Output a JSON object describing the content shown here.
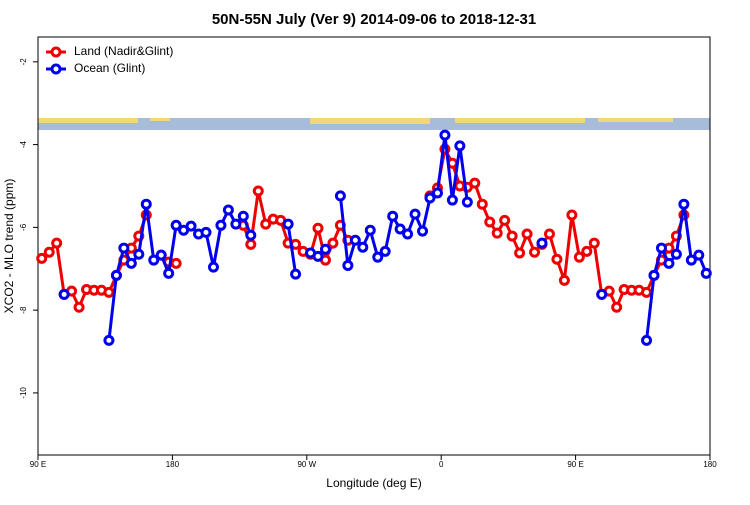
{
  "chart_data": {
    "type": "line",
    "title": "50N-55N July (Ver 9)   2014-09-06 to 2018-12-31",
    "x_label": "Longitude (deg E)",
    "y_label": "XCO2 - MLO trend (ppm)",
    "x": [
      92.5,
      97.5,
      102.5,
      107.5,
      112.5,
      117.5,
      122.5,
      127.5,
      132.5,
      137.5,
      142.5,
      147.5,
      152.5,
      157.5,
      162.5,
      167.5,
      172.5,
      177.5,
      182.5,
      187.5,
      192.5,
      197.5,
      202.5,
      207.5,
      212.5,
      217.5,
      222.5,
      227.5,
      232.5,
      237.5,
      242.5,
      247.5,
      252.5,
      257.5,
      262.5,
      267.5,
      272.5,
      277.5,
      282.5,
      287.5,
      292.5,
      297.5,
      302.5,
      307.5,
      312.5,
      317.5,
      322.5,
      327.5,
      332.5,
      337.5,
      342.5,
      347.5,
      352.5,
      357.5,
      362.5,
      367.5,
      372.5,
      377.5,
      382.5,
      387.5,
      392.5,
      397.5,
      402.5,
      407.5,
      412.5,
      417.5,
      422.5,
      427.5,
      432.5,
      437.5,
      442.5,
      447.5,
      452.5,
      457.5,
      462.5,
      467.5,
      472.5,
      477.5,
      482.5,
      487.5,
      492.5,
      497.5,
      502.5,
      507.5,
      512.5,
      517.5,
      522.5,
      527.5,
      532.5,
      537.5
    ],
    "series": [
      {
        "name": "Land (Nadir&Glint)",
        "color": "#ee0000",
        "values": [
          -6.75,
          -6.6,
          -6.38,
          -7.62,
          -7.54,
          -7.93,
          -7.5,
          -7.52,
          -7.52,
          -7.57,
          -7.16,
          -6.79,
          -6.5,
          -6.21,
          -5.7,
          null,
          -6.67,
          -6.84,
          -6.87,
          null,
          null,
          null,
          null,
          null,
          null,
          null,
          null,
          -5.95,
          -6.41,
          -5.12,
          -5.92,
          -5.8,
          -5.83,
          -6.38,
          -6.41,
          -6.58,
          -6.65,
          -6.02,
          -6.79,
          -6.38,
          -5.95,
          -6.31,
          null,
          null,
          null,
          null,
          null,
          null,
          null,
          null,
          null,
          null,
          -5.24,
          -5.05,
          -4.11,
          -4.45,
          -5,
          -5.03,
          -4.93,
          -5.44,
          -5.87,
          -6.14,
          -5.83,
          -6.21,
          -6.62,
          -6.16,
          -6.6,
          -6.41,
          -6.16,
          -6.77,
          -7.28,
          -5.7,
          -6.72,
          -6.58,
          -6.38,
          -7.62,
          -7.54,
          -7.93,
          -7.5,
          -7.52,
          -7.52,
          -7.57,
          -7.16,
          -6.79,
          -6.5,
          -6.21,
          -5.7,
          null,
          null,
          null
        ]
      },
      {
        "name": "Ocean (Glint)",
        "color": "#0000ee",
        "values": [
          null,
          null,
          null,
          -7.62,
          null,
          null,
          null,
          null,
          null,
          -8.73,
          -7.16,
          -6.5,
          -6.87,
          -6.65,
          -5.44,
          -6.79,
          -6.67,
          -7.11,
          -5.95,
          -6.07,
          -5.97,
          -6.16,
          -6.12,
          -6.96,
          -5.95,
          -5.58,
          -5.92,
          -5.73,
          -6.19,
          null,
          null,
          null,
          null,
          -5.92,
          -7.13,
          null,
          -6.62,
          -6.7,
          -6.53,
          null,
          -5.24,
          -6.92,
          -6.31,
          -6.48,
          -6.07,
          -6.72,
          -6.58,
          -5.73,
          -6.04,
          -6.16,
          -5.68,
          -6.09,
          -5.29,
          -5.17,
          -3.77,
          -5.34,
          -4.03,
          -5.39,
          null,
          null,
          null,
          null,
          null,
          null,
          null,
          null,
          null,
          -6.38,
          null,
          null,
          null,
          null,
          null,
          null,
          null,
          -7.62,
          null,
          null,
          null,
          null,
          null,
          -8.73,
          -7.16,
          -6.5,
          -6.87,
          -6.65,
          -5.44,
          -6.79,
          -6.67,
          -7.11
        ]
      }
    ],
    "xlim": [
      90,
      540
    ],
    "ylim": [
      -1.4,
      -11.5
    ],
    "xticks": [
      {
        "value": 90,
        "label": "90 E"
      },
      180,
      {
        "value": 270,
        "label": "90 W"
      },
      {
        "value": 360,
        "label": "0"
      },
      {
        "value": 450,
        "label": "90 E"
      },
      {
        "value": 540,
        "label": "180"
      }
    ],
    "yticks": [
      -2,
      -4,
      -6,
      -8,
      -10
    ],
    "legend": "top-left"
  }
}
